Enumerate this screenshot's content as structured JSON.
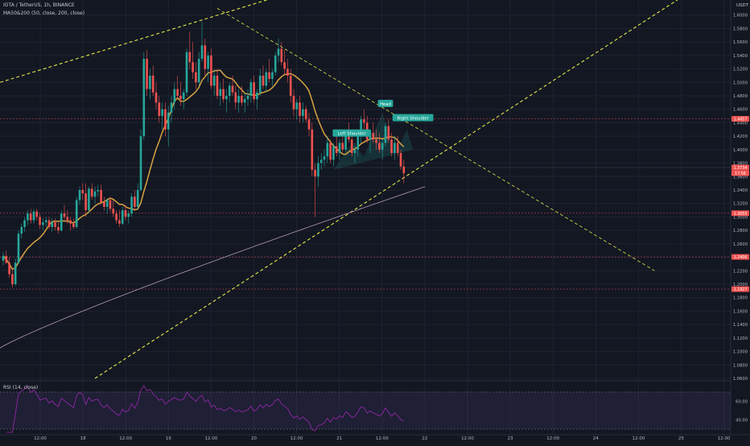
{
  "header": {
    "symbol_line": "IOTA / TetherUS, 1h, BINANCE",
    "ma_line": "MA50&200 (50, close, 200, close)",
    "currency": "USDT"
  },
  "rsi": {
    "label": "RSI (14, close)",
    "ticks": [
      "60.00",
      "40.00"
    ]
  },
  "colors": {
    "background": "#131722",
    "up": "#26a69a",
    "down": "#ef5350",
    "ma50": "#d9a441",
    "ma200": "#b09ab5",
    "trendline": "#e5e94a",
    "level": "#e14a5d",
    "rsi_line": "#9c27b0"
  },
  "chart_data": {
    "type": "candlestick",
    "y_axis_ticks": [
      "1.6000",
      "1.5800",
      "1.5600",
      "1.5400",
      "1.5200",
      "1.5000",
      "1.4800",
      "1.4600",
      "1.4400",
      "1.4200",
      "1.4000",
      "1.3800",
      "1.3600",
      "1.3400",
      "1.3200",
      "1.3000",
      "1.2800",
      "1.2600",
      "1.2400",
      "1.2200",
      "1.2000",
      "1.1800",
      "1.1600",
      "1.1400",
      "1.1200",
      "1.1000",
      "1.0800",
      "1.0600"
    ],
    "ylim": [
      1.06,
      1.62
    ],
    "x_axis_ticks": [
      "12:00",
      "18",
      "12:00",
      "19",
      "12:00",
      "20",
      "12:00",
      "21",
      "12:00",
      "22",
      "12:00",
      "23",
      "12:00",
      "24",
      "12:00",
      "25",
      "12:00"
    ],
    "price_labels": [
      {
        "value": 1.4457,
        "text": "1.4457"
      },
      {
        "value": 1.3734,
        "text": "1.3734"
      },
      {
        "value": 1.365,
        "text": "17:56"
      },
      {
        "value": 1.3055,
        "text": "1.3055"
      },
      {
        "value": 1.2406,
        "text": "1.2406"
      },
      {
        "value": 1.1927,
        "text": "1.1927"
      }
    ],
    "horizontal_levels": [
      1.4457,
      1.3055,
      1.2406,
      1.1927
    ],
    "annotations": [
      {
        "text": "Left Shoulder",
        "price": 1.424,
        "time": 114
      },
      {
        "text": "Head",
        "price": 1.468,
        "time": 125
      },
      {
        "text": "Right Shoulder",
        "price": 1.447,
        "time": 134
      }
    ],
    "candles": [
      [
        1.235,
        1.248,
        1.228,
        1.242
      ],
      [
        1.242,
        1.25,
        1.23,
        1.232
      ],
      [
        1.232,
        1.24,
        1.21,
        1.215
      ],
      [
        1.215,
        1.225,
        1.195,
        1.2
      ],
      [
        1.2,
        1.238,
        1.198,
        1.232
      ],
      [
        1.232,
        1.28,
        1.23,
        1.275
      ],
      [
        1.275,
        1.29,
        1.268,
        1.285
      ],
      [
        1.285,
        1.3,
        1.278,
        1.295
      ],
      [
        1.295,
        1.31,
        1.288,
        1.305
      ],
      [
        1.305,
        1.312,
        1.29,
        1.295
      ],
      [
        1.295,
        1.312,
        1.29,
        1.308
      ],
      [
        1.308,
        1.312,
        1.295,
        1.3
      ],
      [
        1.3,
        1.305,
        1.282,
        1.288
      ],
      [
        1.288,
        1.298,
        1.28,
        1.292
      ],
      [
        1.292,
        1.3,
        1.285,
        1.295
      ],
      [
        1.295,
        1.3,
        1.282,
        1.285
      ],
      [
        1.285,
        1.298,
        1.278,
        1.292
      ],
      [
        1.292,
        1.298,
        1.28,
        1.285
      ],
      [
        1.285,
        1.292,
        1.275,
        1.28
      ],
      [
        1.28,
        1.31,
        1.278,
        1.305
      ],
      [
        1.305,
        1.318,
        1.295,
        1.3
      ],
      [
        1.3,
        1.31,
        1.29,
        1.295
      ],
      [
        1.295,
        1.3,
        1.28,
        1.29
      ],
      [
        1.29,
        1.298,
        1.282,
        1.285
      ],
      [
        1.285,
        1.33,
        1.283,
        1.325
      ],
      [
        1.325,
        1.345,
        1.318,
        1.34
      ],
      [
        1.34,
        1.35,
        1.325,
        1.335
      ],
      [
        1.335,
        1.35,
        1.3,
        1.31
      ],
      [
        1.31,
        1.345,
        1.305,
        1.342
      ],
      [
        1.342,
        1.35,
        1.325,
        1.33
      ],
      [
        1.33,
        1.345,
        1.32,
        1.338
      ],
      [
        1.338,
        1.348,
        1.33,
        1.34
      ],
      [
        1.34,
        1.348,
        1.318,
        1.322
      ],
      [
        1.322,
        1.33,
        1.31,
        1.315
      ],
      [
        1.315,
        1.328,
        1.305,
        1.325
      ],
      [
        1.325,
        1.33,
        1.308,
        1.312
      ],
      [
        1.312,
        1.325,
        1.3,
        1.305
      ],
      [
        1.305,
        1.31,
        1.29,
        1.295
      ],
      [
        1.295,
        1.31,
        1.285,
        1.29
      ],
      [
        1.29,
        1.315,
        1.288,
        1.31
      ],
      [
        1.31,
        1.318,
        1.295,
        1.3
      ],
      [
        1.3,
        1.31,
        1.29,
        1.305
      ],
      [
        1.305,
        1.335,
        1.3,
        1.33
      ],
      [
        1.33,
        1.34,
        1.31,
        1.315
      ],
      [
        1.315,
        1.35,
        1.31,
        1.34
      ],
      [
        1.34,
        1.43,
        1.338,
        1.42
      ],
      [
        1.42,
        1.545,
        1.415,
        1.535
      ],
      [
        1.535,
        1.548,
        1.48,
        1.49
      ],
      [
        1.49,
        1.52,
        1.475,
        1.51
      ],
      [
        1.51,
        1.525,
        1.48,
        1.485
      ],
      [
        1.485,
        1.5,
        1.46,
        1.47
      ],
      [
        1.47,
        1.48,
        1.44,
        1.45
      ],
      [
        1.45,
        1.47,
        1.43,
        1.46
      ],
      [
        1.46,
        1.47,
        1.42,
        1.43
      ],
      [
        1.43,
        1.465,
        1.405,
        1.455
      ],
      [
        1.455,
        1.48,
        1.44,
        1.47
      ],
      [
        1.47,
        1.5,
        1.46,
        1.49
      ],
      [
        1.49,
        1.51,
        1.475,
        1.48
      ],
      [
        1.48,
        1.5,
        1.465,
        1.475
      ],
      [
        1.475,
        1.49,
        1.46,
        1.485
      ],
      [
        1.485,
        1.55,
        1.48,
        1.545
      ],
      [
        1.545,
        1.575,
        1.52,
        1.53
      ],
      [
        1.53,
        1.56,
        1.505,
        1.515
      ],
      [
        1.515,
        1.53,
        1.49,
        1.5
      ],
      [
        1.5,
        1.545,
        1.495,
        1.535
      ],
      [
        1.535,
        1.59,
        1.53,
        1.555
      ],
      [
        1.555,
        1.565,
        1.51,
        1.52
      ],
      [
        1.52,
        1.545,
        1.5,
        1.54
      ],
      [
        1.54,
        1.55,
        1.49,
        1.495
      ],
      [
        1.495,
        1.52,
        1.48,
        1.51
      ],
      [
        1.51,
        1.52,
        1.475,
        1.48
      ],
      [
        1.48,
        1.5,
        1.465,
        1.49
      ],
      [
        1.49,
        1.505,
        1.47,
        1.475
      ],
      [
        1.475,
        1.49,
        1.455,
        1.48
      ],
      [
        1.48,
        1.5,
        1.47,
        1.495
      ],
      [
        1.495,
        1.51,
        1.48,
        1.485
      ],
      [
        1.485,
        1.495,
        1.46,
        1.47
      ],
      [
        1.47,
        1.49,
        1.455,
        1.48
      ],
      [
        1.48,
        1.495,
        1.465,
        1.47
      ],
      [
        1.47,
        1.485,
        1.455,
        1.475
      ],
      [
        1.475,
        1.49,
        1.465,
        1.48
      ],
      [
        1.48,
        1.505,
        1.47,
        1.5
      ],
      [
        1.5,
        1.51,
        1.47,
        1.475
      ],
      [
        1.475,
        1.49,
        1.46,
        1.485
      ],
      [
        1.485,
        1.52,
        1.48,
        1.51
      ],
      [
        1.51,
        1.525,
        1.49,
        1.495
      ],
      [
        1.495,
        1.52,
        1.485,
        1.515
      ],
      [
        1.515,
        1.535,
        1.5,
        1.505
      ],
      [
        1.505,
        1.52,
        1.495,
        1.515
      ],
      [
        1.515,
        1.545,
        1.51,
        1.54
      ],
      [
        1.54,
        1.565,
        1.53,
        1.55
      ],
      [
        1.55,
        1.56,
        1.525,
        1.53
      ],
      [
        1.53,
        1.548,
        1.51,
        1.52
      ],
      [
        1.52,
        1.535,
        1.5,
        1.51
      ],
      [
        1.51,
        1.52,
        1.47,
        1.48
      ],
      [
        1.48,
        1.49,
        1.45,
        1.46
      ],
      [
        1.46,
        1.475,
        1.445,
        1.47
      ],
      [
        1.47,
        1.48,
        1.44,
        1.45
      ],
      [
        1.45,
        1.47,
        1.44,
        1.46
      ],
      [
        1.46,
        1.465,
        1.44,
        1.445
      ],
      [
        1.445,
        1.455,
        1.42,
        1.43
      ],
      [
        1.43,
        1.44,
        1.36,
        1.37
      ],
      [
        1.37,
        1.38,
        1.3,
        1.36
      ],
      [
        1.36,
        1.39,
        1.345,
        1.38
      ],
      [
        1.38,
        1.395,
        1.37,
        1.385
      ],
      [
        1.385,
        1.4,
        1.375,
        1.39
      ],
      [
        1.39,
        1.42,
        1.38,
        1.41
      ],
      [
        1.41,
        1.415,
        1.38,
        1.385
      ],
      [
        1.385,
        1.41,
        1.375,
        1.405
      ],
      [
        1.405,
        1.42,
        1.39,
        1.395
      ],
      [
        1.395,
        1.415,
        1.385,
        1.41
      ],
      [
        1.41,
        1.425,
        1.395,
        1.4
      ],
      [
        1.4,
        1.43,
        1.395,
        1.425
      ],
      [
        1.425,
        1.44,
        1.41,
        1.415
      ],
      [
        1.415,
        1.425,
        1.39,
        1.395
      ],
      [
        1.395,
        1.41,
        1.38,
        1.4
      ],
      [
        1.4,
        1.43,
        1.39,
        1.42
      ],
      [
        1.42,
        1.45,
        1.41,
        1.445
      ],
      [
        1.445,
        1.46,
        1.43,
        1.44
      ],
      [
        1.44,
        1.45,
        1.41,
        1.415
      ],
      [
        1.415,
        1.43,
        1.395,
        1.425
      ],
      [
        1.425,
        1.44,
        1.41,
        1.415
      ],
      [
        1.415,
        1.43,
        1.4,
        1.41
      ],
      [
        1.41,
        1.425,
        1.395,
        1.4
      ],
      [
        1.4,
        1.415,
        1.385,
        1.41
      ],
      [
        1.41,
        1.44,
        1.405,
        1.435
      ],
      [
        1.435,
        1.445,
        1.41,
        1.415
      ],
      [
        1.415,
        1.425,
        1.39,
        1.395
      ],
      [
        1.395,
        1.42,
        1.385,
        1.41
      ],
      [
        1.41,
        1.42,
        1.39,
        1.395
      ],
      [
        1.395,
        1.4,
        1.37,
        1.375
      ],
      [
        1.375,
        1.385,
        1.35,
        1.365
      ]
    ]
  }
}
